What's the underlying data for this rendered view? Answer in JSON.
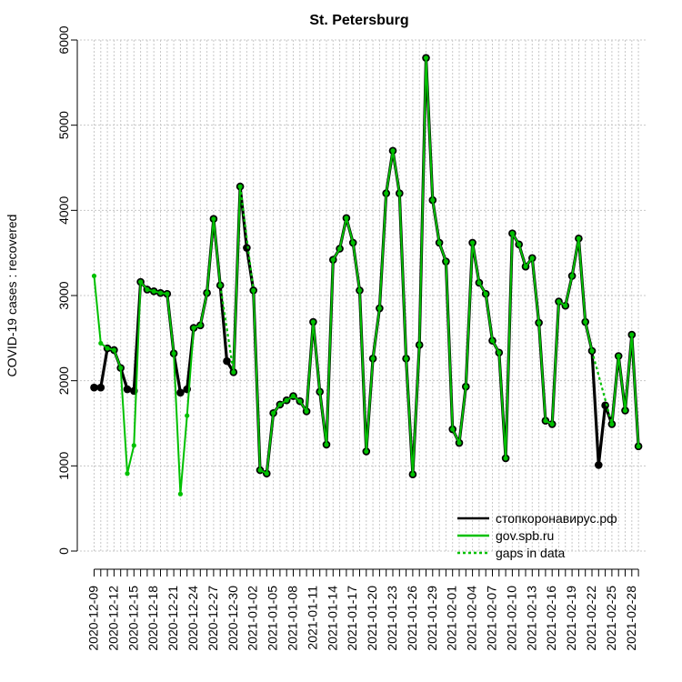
{
  "chart_data": {
    "type": "line",
    "title": "St. Petersburg",
    "ylabel": "COVID-19 cases : recovered",
    "xlabel": "",
    "ylim": [
      0,
      6000
    ],
    "yticks": [
      0,
      1000,
      2000,
      3000,
      4000,
      5000,
      6000
    ],
    "x_start": "2020-12-09",
    "x_end": "2021-02-28",
    "xtick_labels": [
      "2020-12-09",
      "2020-12-12",
      "2020-12-15",
      "2020-12-18",
      "2020-12-21",
      "2020-12-24",
      "2020-12-27",
      "2020-12-30",
      "2021-01-02",
      "2021-01-05",
      "2021-01-08",
      "2021-01-11",
      "2021-01-14",
      "2021-01-17",
      "2021-01-20",
      "2021-01-23",
      "2021-01-26",
      "2021-01-29",
      "2021-02-01",
      "2021-02-04",
      "2021-02-07",
      "2021-02-10",
      "2021-02-13",
      "2021-02-16",
      "2021-02-19",
      "2021-02-22",
      "2021-02-25",
      "2021-02-28"
    ],
    "grid": true,
    "legend_position": "bottom-right",
    "series": [
      {
        "name": "стопкоронавирус.рф",
        "color": "#000000",
        "values": [
          1920,
          1920,
          2380,
          2360,
          2150,
          1900,
          1880,
          3160,
          3070,
          3050,
          3030,
          3020,
          2320,
          1860,
          1900,
          2620,
          2650,
          3030,
          3900,
          3120,
          2230,
          2100,
          4280,
          3560,
          3060,
          950,
          910,
          1620,
          1720,
          1770,
          1820,
          1760,
          1640,
          2690,
          1870,
          1250,
          3420,
          3550,
          3910,
          3620,
          3060,
          1170,
          2260,
          2850,
          4200,
          4700,
          4200,
          2260,
          900,
          2420,
          5790,
          4120,
          3620,
          3400,
          1430,
          1270,
          1930,
          3620,
          3150,
          3020,
          2470,
          2330,
          1090,
          3730,
          3600,
          3340,
          3440,
          2680,
          1530,
          1490,
          2930,
          2880,
          3230,
          3670,
          2690,
          2350,
          1010,
          1710,
          1490,
          2290,
          1650,
          2540,
          1230
        ]
      },
      {
        "name": "gov.spb.ru",
        "color": "#00c000",
        "values": [
          3230,
          2440,
          2380,
          2360,
          2150,
          910,
          1240,
          3160,
          3070,
          3050,
          3030,
          3020,
          2320,
          670,
          1590,
          2620,
          2650,
          3030,
          3900,
          3120,
          null,
          2100,
          4280,
          null,
          3060,
          950,
          910,
          1620,
          1720,
          1770,
          1820,
          1760,
          1640,
          2690,
          1870,
          1250,
          3420,
          3550,
          3910,
          3620,
          3060,
          1170,
          2260,
          2850,
          4200,
          4700,
          4200,
          2260,
          900,
          2420,
          5790,
          4120,
          3620,
          3400,
          1430,
          1270,
          1930,
          3620,
          3150,
          3020,
          2470,
          2330,
          1090,
          3730,
          3600,
          3340,
          3440,
          2680,
          1530,
          1490,
          2930,
          2880,
          3230,
          3670,
          2690,
          2350,
          null,
          null,
          1490,
          2290,
          1650,
          2540,
          1230
        ]
      }
    ],
    "legend": [
      {
        "name": "стопкоронавирус.рф",
        "color": "#000000",
        "style": "solid"
      },
      {
        "name": "gov.spb.ru",
        "color": "#00c000",
        "style": "solid"
      },
      {
        "name": "gaps in data",
        "color": "#00c000",
        "style": "dotted"
      }
    ]
  }
}
